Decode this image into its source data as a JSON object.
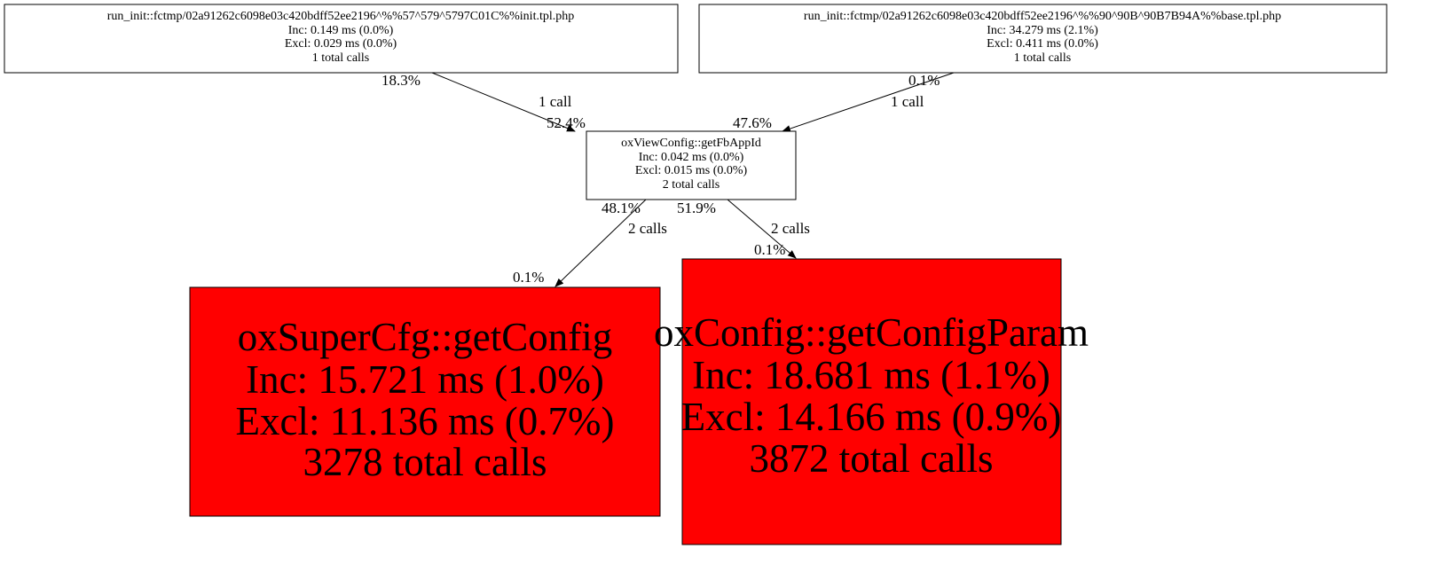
{
  "nodes": {
    "init_tpl": {
      "lines": [
        "run_init::fctmp/02a91262c6098e03c420bdff52ee2196^%%57^579^5797C01C%%init.tpl.php",
        "Inc: 0.149 ms (0.0%)",
        "Excl: 0.029 ms (0.0%)",
        "1 total calls"
      ],
      "fill": "#ffffff"
    },
    "base_tpl": {
      "lines": [
        "run_init::fctmp/02a91262c6098e03c420bdff52ee2196^%%90^90B^90B7B94A%%base.tpl.php",
        "Inc: 34.279 ms (2.1%)",
        "Excl: 0.411 ms (0.0%)",
        "1 total calls"
      ],
      "fill": "#ffffff"
    },
    "getFbAppId": {
      "lines": [
        "oxViewConfig::getFbAppId",
        "Inc: 0.042 ms (0.0%)",
        "Excl: 0.015 ms (0.0%)",
        "2 total calls"
      ],
      "fill": "#ffffff"
    },
    "getConfig": {
      "lines": [
        "oxSuperCfg::getConfig",
        "Inc: 15.721 ms (1.0%)",
        "Excl: 11.136 ms (0.7%)",
        "3278 total calls"
      ],
      "fill": "#ff0000"
    },
    "getConfigParam": {
      "lines": [
        "oxConfig::getConfigParam",
        "Inc: 18.681 ms (1.1%)",
        "Excl: 14.166 ms (0.9%)",
        "3872 total calls"
      ],
      "fill": "#ff0000"
    }
  },
  "edges": [
    {
      "from": "init_tpl",
      "to": "getFbAppId",
      "tail": "18.3%",
      "label": "1 call",
      "head": "52.4%"
    },
    {
      "from": "base_tpl",
      "to": "getFbAppId",
      "tail": "0.1%",
      "label": "1 call",
      "head": "47.6%"
    },
    {
      "from": "getFbAppId",
      "to": "getConfig",
      "tail": "48.1%",
      "label": "2 calls",
      "head": "0.1%"
    },
    {
      "from": "getFbAppId",
      "to": "getConfigParam",
      "tail": "51.9%",
      "label": "2 calls",
      "head": "0.1%"
    }
  ]
}
